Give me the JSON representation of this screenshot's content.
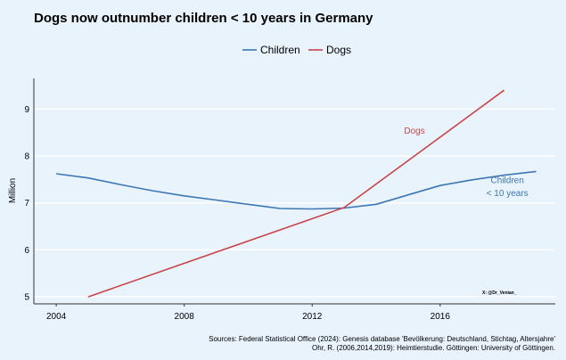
{
  "chart_data": {
    "type": "line",
    "title": "Dogs now outnumber children < 10 years in Germany",
    "xlabel": "",
    "ylabel": "Million",
    "xlim": [
      2003.3,
      2019.6
    ],
    "ylim": [
      4.85,
      9.65
    ],
    "xticks": [
      2004,
      2008,
      2012,
      2016
    ],
    "yticks": [
      5,
      6,
      7,
      8,
      9
    ],
    "grid": true,
    "legend_position": "top",
    "series": [
      {
        "name": "Children",
        "color": "#3d77b4",
        "x": [
          2004,
          2005,
          2006,
          2007,
          2008,
          2009,
          2010,
          2011,
          2012,
          2013,
          2014,
          2015,
          2016,
          2017,
          2018,
          2019
        ],
        "y": [
          7.62,
          7.53,
          7.39,
          7.26,
          7.15,
          7.06,
          6.97,
          6.88,
          6.87,
          6.89,
          6.97,
          7.17,
          7.37,
          7.49,
          7.59,
          7.67
        ]
      },
      {
        "name": "Dogs",
        "color": "#c8464a",
        "x": [
          2005,
          2013,
          2018
        ],
        "y": [
          5.0,
          6.9,
          9.4
        ]
      }
    ],
    "annotations": [
      {
        "text": "Dogs",
        "x": 2015.2,
        "y": 8.47,
        "color": "#c8464a"
      },
      {
        "text": "Children",
        "x": 2018.1,
        "y": 7.42,
        "color": "#3d77b4"
      },
      {
        "text": "< 10 years",
        "x": 2018.1,
        "y": 7.15,
        "color": "#3d77b4"
      }
    ]
  },
  "credit": "X: @Dr_Venian_",
  "sources": [
    "Sources: Federal Statistical Office (2024): Genesis database 'Bevölkerung: Deutschland, Stichtag, Altersjahre'",
    "Ohr, R. (2006,2014,2019): Heimtierstudie. Göttingen: University of Göttingen."
  ]
}
